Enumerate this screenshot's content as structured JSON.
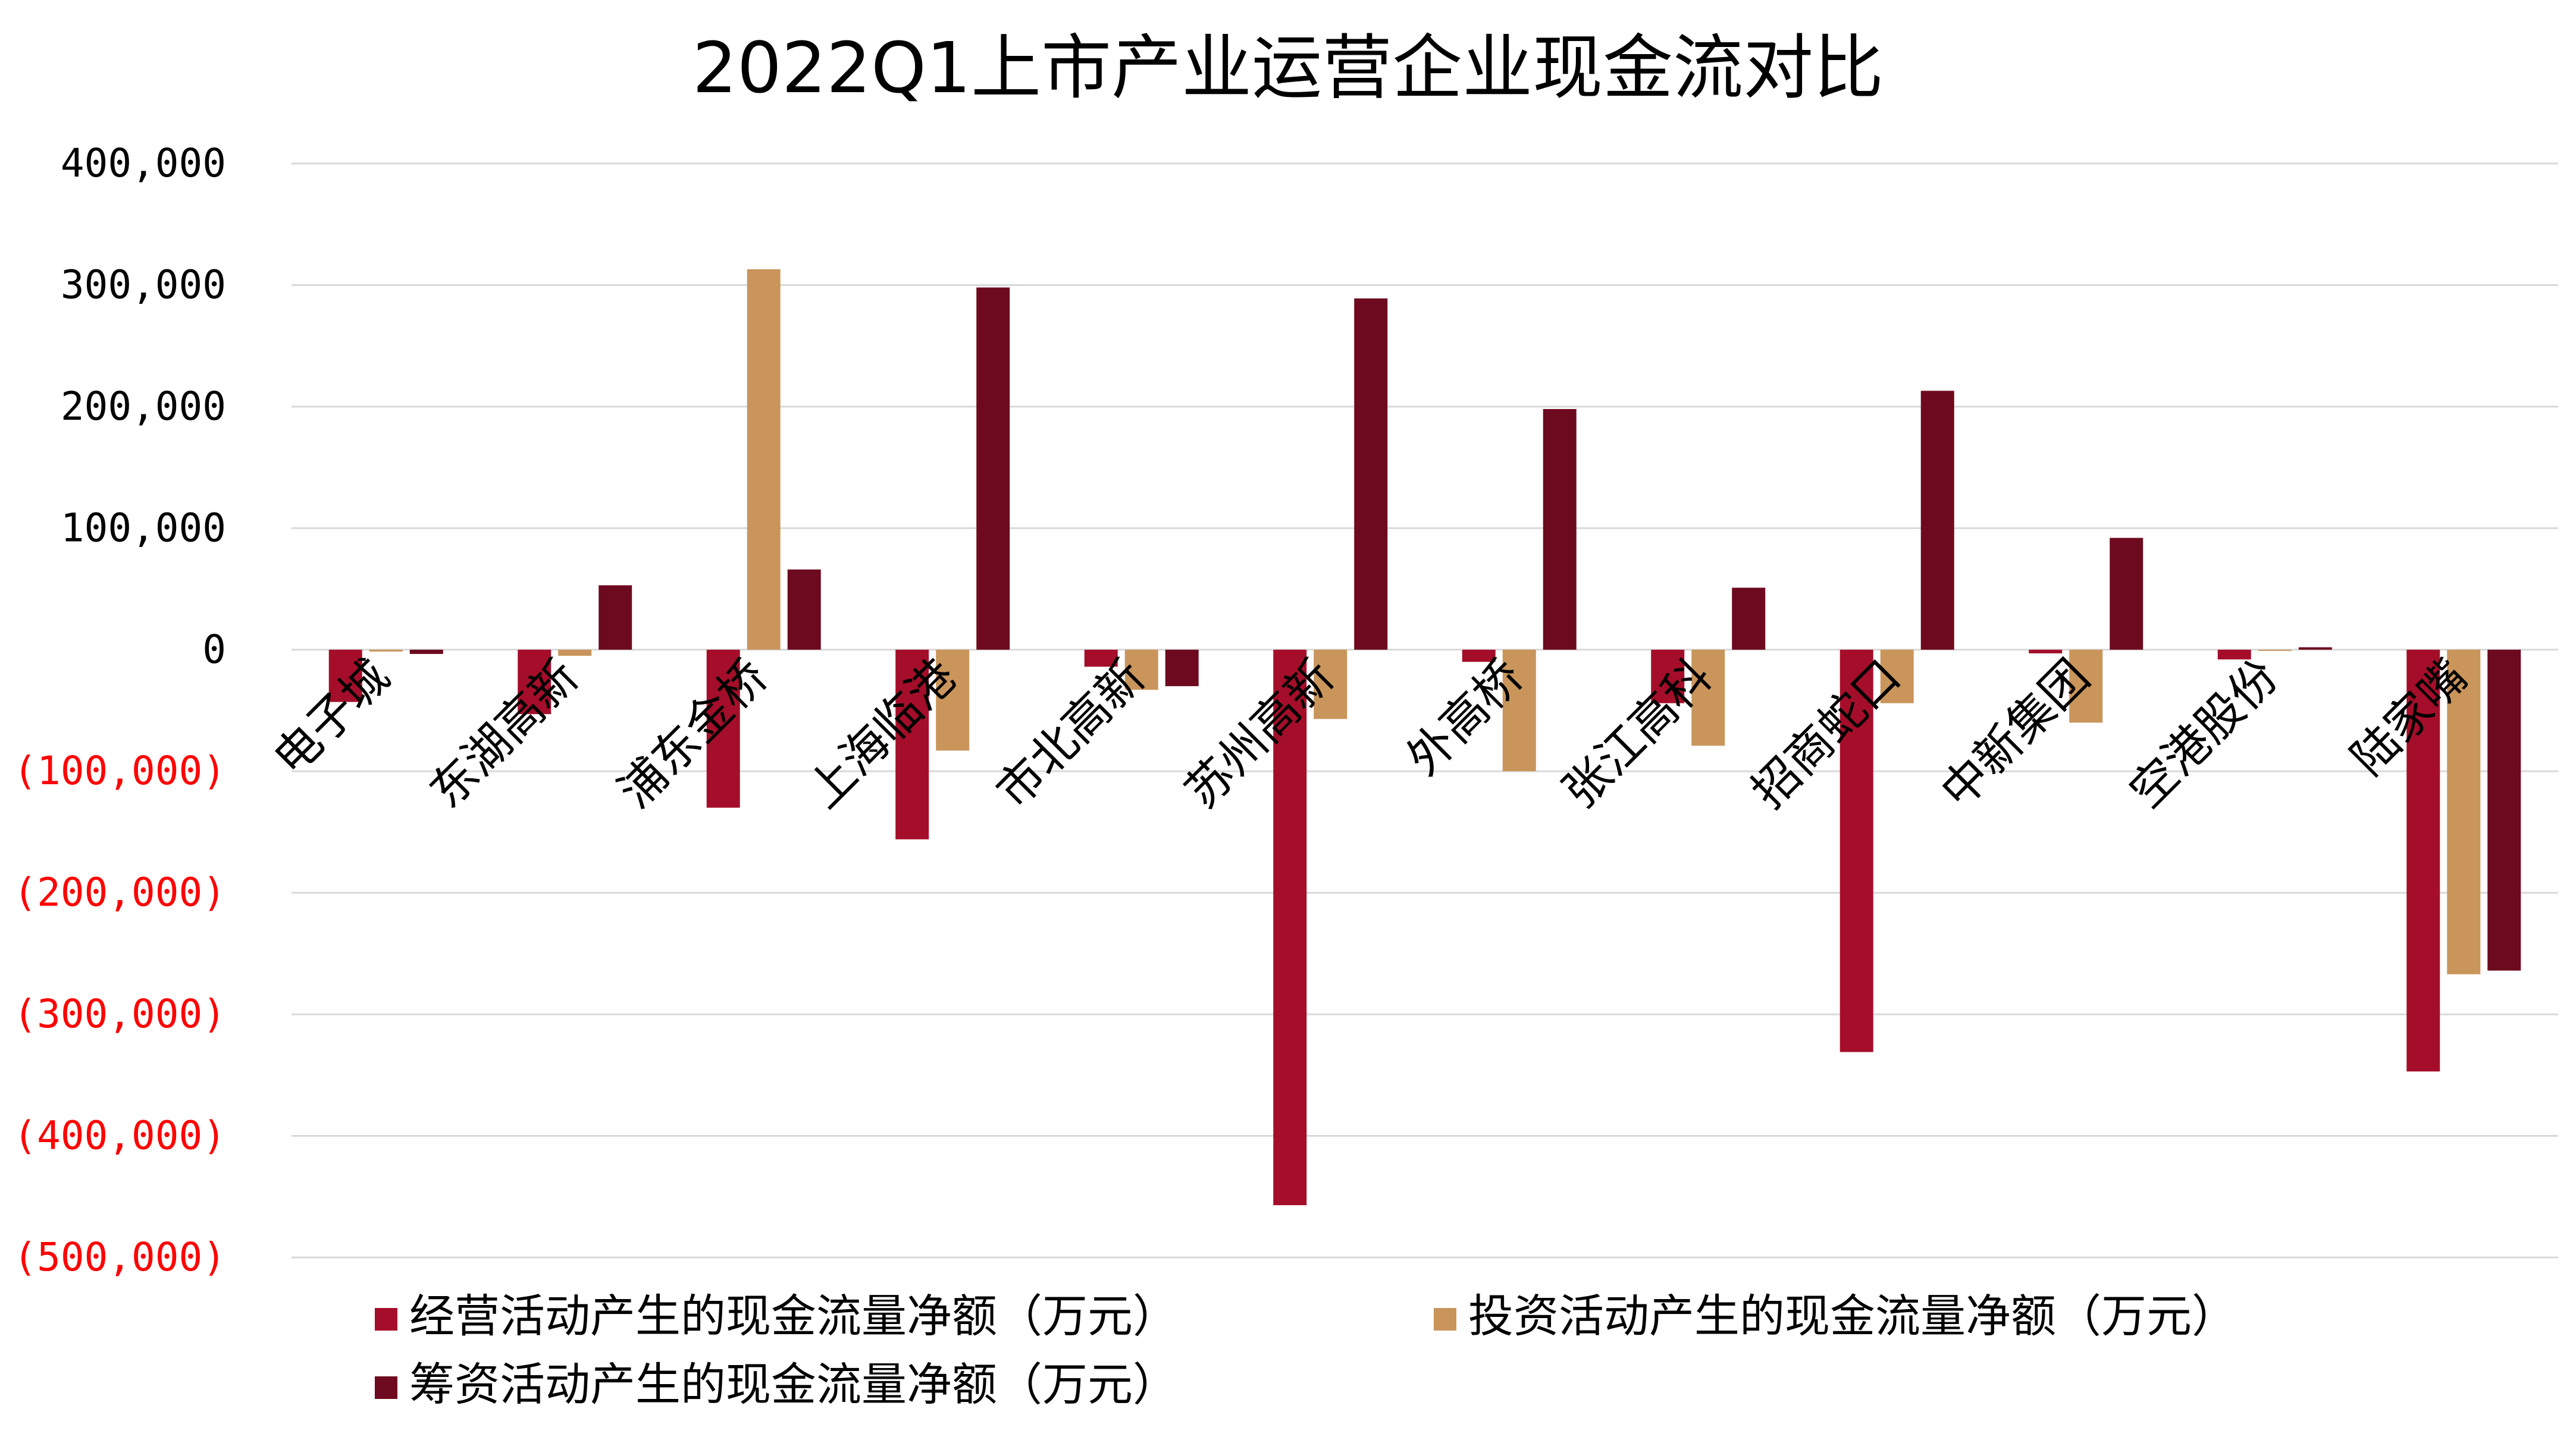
{
  "chart_data": {
    "type": "bar",
    "title": "2022Q1上市产业运营企业现金流对比",
    "xlabel": "",
    "ylabel": "",
    "ylim": [
      -500000,
      400000
    ],
    "yticks": [
      400000,
      300000,
      200000,
      100000,
      0,
      -100000,
      -200000,
      -300000,
      -400000,
      -500000
    ],
    "ytick_labels": [
      "400,000",
      "300,000",
      "200,000",
      "100,000",
      "0",
      "(100,000)",
      "(200,000)",
      "(300,000)",
      "(400,000)",
      "(500,000)"
    ],
    "grid": true,
    "legend_position": "bottom",
    "categories": [
      "电子城",
      "东湖高新",
      "浦东金桥",
      "上海临港",
      "市北高新",
      "苏州高新",
      "外高桥",
      "张江高科",
      "招商蛇口",
      "中新集团",
      "空港股份",
      "陆家嘴"
    ],
    "series": [
      {
        "name": "经营活动产生的现金流量净额（万元）",
        "color": "#A50E2A",
        "values": [
          -43000,
          -53000,
          -130000,
          -156000,
          -14000,
          -457000,
          -10000,
          -44000,
          -331000,
          -3000,
          -8000,
          -347000
        ]
      },
      {
        "name": "投资活动产生的现金流量净额（万元）",
        "color": "#C9955B",
        "values": [
          -1500,
          -5000,
          313000,
          -83000,
          -33000,
          -57000,
          -100000,
          -79000,
          -44000,
          -60000,
          0,
          -267000
        ]
      },
      {
        "name": "筹资活动产生的现金流量净额（万元）",
        "color": "#6E0A1F",
        "values": [
          -3500,
          53000,
          66000,
          298000,
          -30000,
          289000,
          198000,
          51000,
          213000,
          92000,
          2000,
          -264000
        ]
      }
    ],
    "colors": {
      "positive_tick": "#000000",
      "negative_tick": "#FF0000",
      "gridline": "#D9D9D9"
    }
  }
}
